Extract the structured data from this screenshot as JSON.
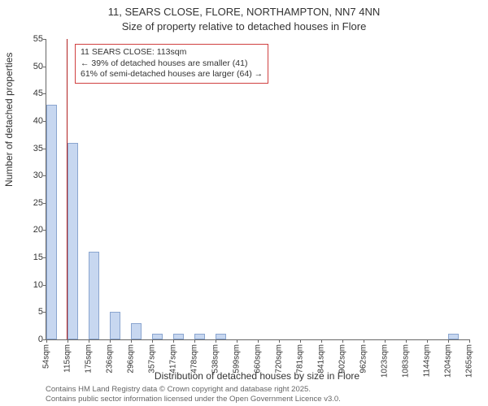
{
  "titles": {
    "line1": "11, SEARS CLOSE, FLORE, NORTHAMPTON, NN7 4NN",
    "line2": "Size of property relative to detached houses in Flore"
  },
  "chart": {
    "type": "histogram",
    "ylabel": "Number of detached properties",
    "xlabel": "Distribution of detached houses by size in Flore",
    "ylim": [
      0,
      55
    ],
    "ytick_step": 5,
    "xticks": [
      "54sqm",
      "115sqm",
      "175sqm",
      "236sqm",
      "296sqm",
      "357sqm",
      "417sqm",
      "478sqm",
      "538sqm",
      "599sqm",
      "660sqm",
      "720sqm",
      "781sqm",
      "841sqm",
      "902sqm",
      "962sqm",
      "1023sqm",
      "1083sqm",
      "1144sqm",
      "1204sqm",
      "1265sqm"
    ],
    "x_range": [
      54,
      1265
    ],
    "bars": [
      {
        "x": 69.1,
        "count": 43
      },
      {
        "x": 129.6,
        "count": 36
      },
      {
        "x": 190.1,
        "count": 16
      },
      {
        "x": 250.6,
        "count": 5
      },
      {
        "x": 311.2,
        "count": 3
      },
      {
        "x": 371.7,
        "count": 1
      },
      {
        "x": 432.3,
        "count": 1
      },
      {
        "x": 492.8,
        "count": 1
      },
      {
        "x": 553.3,
        "count": 1
      },
      {
        "x": 1219.1,
        "count": 1
      }
    ],
    "bar_fill": "#c7d7f0",
    "bar_stroke": "#8aa5cf",
    "background": "#ffffff",
    "axis_color": "#666666",
    "text_color": "#333333",
    "reference_line": {
      "x": 113,
      "color": "#b02020"
    },
    "annotation": {
      "line1": "11 SEARS CLOSE: 113sqm",
      "line2": "← 39% of detached houses are smaller (41)",
      "line3": "61% of semi-detached houses are larger (64) →",
      "border_color": "#d04040"
    },
    "title_fontsize": 13,
    "label_fontsize": 12,
    "tick_fontsize": 11
  },
  "footer": {
    "line1": "Contains HM Land Registry data © Crown copyright and database right 2025.",
    "line2": "Contains public sector information licensed under the Open Government Licence v3.0."
  }
}
